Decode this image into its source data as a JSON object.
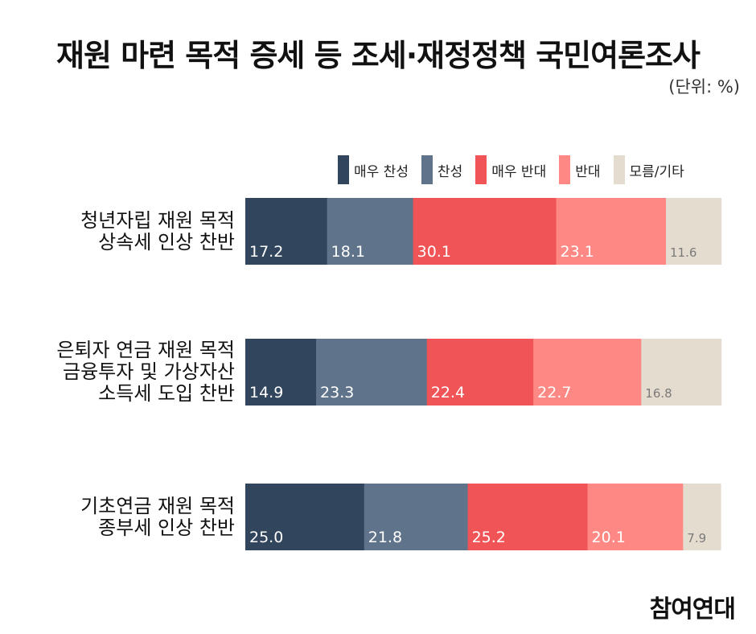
{
  "title": "재원 마련 목적 증세 등 조세·재정정책 국민여론조사",
  "unit": "(단위: %)",
  "footer": "참여연대",
  "chart_data": {
    "type": "bar",
    "orientation": "horizontal",
    "stacked": true,
    "categories": [
      [
        "청년자립 재원 목적",
        "상속세 인상 찬반"
      ],
      [
        "은퇴자 연금 재원 목적",
        "금융투자 및 가상자산",
        "소득세 도입 찬반"
      ],
      [
        "기초연금 재원 목적",
        "종부세 인상 찬반"
      ]
    ],
    "series": [
      {
        "name": "매우 찬성",
        "color": "#31455d",
        "label_color": "#ffffff",
        "values": [
          17.2,
          14.9,
          25.0
        ]
      },
      {
        "name": "찬성",
        "color": "#5f738a",
        "label_color": "#ffffff",
        "values": [
          18.1,
          23.3,
          21.8
        ]
      },
      {
        "name": "매우 반대",
        "color": "#f05457",
        "label_color": "#ffffff",
        "values": [
          30.1,
          22.4,
          25.2
        ]
      },
      {
        "name": "반대",
        "color": "#fe8883",
        "label_color": "#ffffff",
        "values": [
          23.1,
          22.7,
          20.1
        ]
      },
      {
        "name": "모름/기타",
        "color": "#e5dcd0",
        "label_color": "#7a7a7a",
        "values": [
          11.6,
          16.8,
          7.9
        ]
      }
    ],
    "xlim": [
      0,
      100
    ],
    "legend": "top-right",
    "grid": false
  }
}
